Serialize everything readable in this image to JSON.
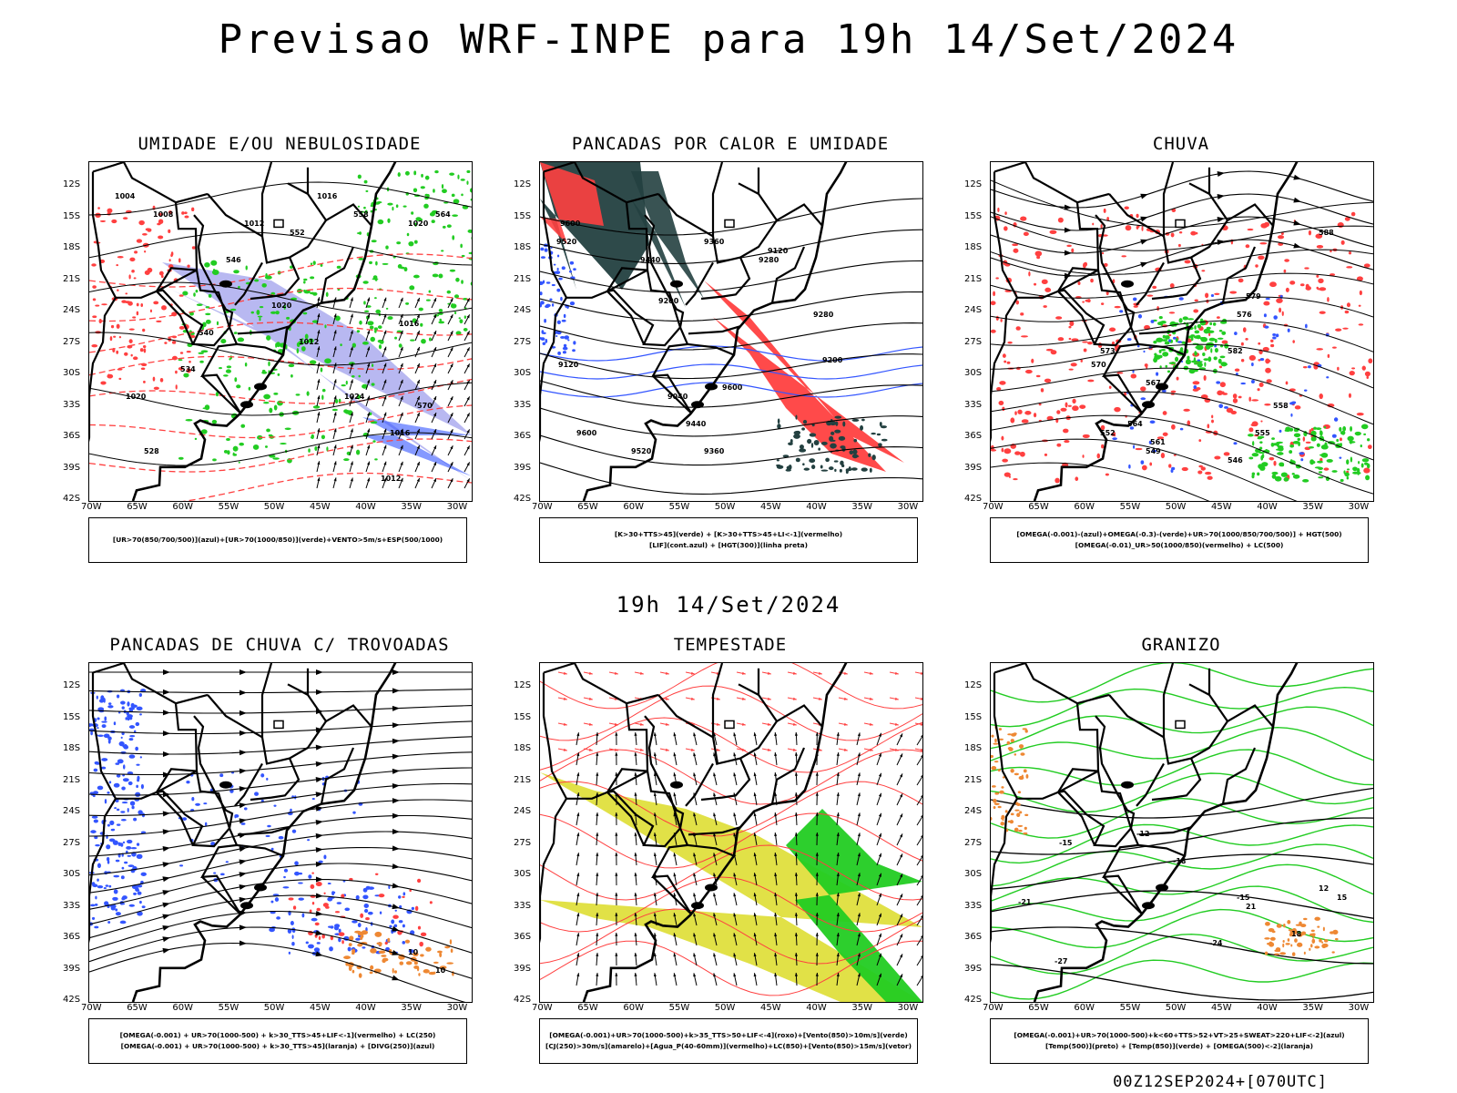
{
  "title": "Previsao WRF-INPE  para 19h 14/Set/2024",
  "subtitle": "19h 14/Set/2024",
  "footer": "00Z12SEP2024+[070UTC]",
  "axes": {
    "lat_labels": [
      "12S",
      "15S",
      "18S",
      "21S",
      "24S",
      "27S",
      "30S",
      "33S",
      "36S",
      "39S",
      "42S"
    ],
    "lon_labels": [
      "70W",
      "65W",
      "60W",
      "55W",
      "50W",
      "45W",
      "40W",
      "35W",
      "30W"
    ]
  },
  "colors": {
    "green": "#22cc22",
    "red": "#ff4040",
    "blue": "#3355ff",
    "lavender": "#b0b0f0",
    "teal": "#234040",
    "yellow": "#dede33",
    "orange": "#ee8833",
    "black": "#000000"
  },
  "panels": [
    {
      "id": "umidade",
      "title": "UMIDADE E/OU NEBULOSIDADE",
      "legend": [
        "[UR>70(850/700/500)](azul)+[UR>70(1000/850)](verde)+VENTO>5m/s+ESP(500/1000)"
      ],
      "labels": [
        "1004",
        "1008",
        "1012",
        "1016",
        "1020",
        "1024",
        "1016",
        "1012",
        "1020",
        "570",
        "564",
        "558",
        "552",
        "546",
        "540",
        "534",
        "528",
        "1016",
        "1012",
        "1020"
      ]
    },
    {
      "id": "pancadas-calor",
      "title": "PANCADAS POR CALOR E UMIDADE",
      "legend": [
        "[K>30+TTS>45](verde) + [K>30+TTS>45+LI<-1](vermelho)",
        "[LIF](cont.azul) + [HGT(300)](linha preta)"
      ],
      "labels": [
        "9600",
        "9520",
        "9440",
        "9360",
        "9280",
        "9200",
        "9120",
        "9040",
        "9600",
        "9600",
        "9520",
        "9440",
        "9360",
        "9280",
        "9200",
        "9120"
      ]
    },
    {
      "id": "chuva",
      "title": "CHUVA",
      "legend": [
        "[OMEGA(-0.001)-(azul)+OMEGA(-0.3)-(verde)+UR>70(1000/850/700/500)] + HGT(500)",
        "[OMEGA(-0.01)_UR>50(1000/850)(vermelho) + LC(500)"
      ],
      "labels": [
        "588",
        "582",
        "579",
        "576",
        "573",
        "570",
        "567",
        "564",
        "561",
        "558",
        "555",
        "552",
        "549",
        "546"
      ]
    },
    {
      "id": "pancadas-trovoadas",
      "title": "PANCADAS DE CHUVA C/ TROVOADAS",
      "legend": [
        "[OMEGA(-0.001) + UR>70(1000-500) + k>30_TTS>45+LIF<-1](vermelho) + LC(250)",
        "[OMEGA(-0.001) + UR>70(1000-500) + k>30_TTS>45](laranja) + [DIVG(250)](azul)"
      ],
      "labels": [
        "10",
        "10"
      ]
    },
    {
      "id": "tempestade",
      "title": "TEMPESTADE",
      "legend": [
        "[OMEGA(-0.001)+UR>70(1000-500)+k>35_TTS>50+LIF<-4](roxo)+[Vento(850)>10m/s](verde)",
        "[CJ(250)>30m/s](amarelo)+[Agua_P(40-60mm)](vermelho)+LC(850)+[Vento(850)>15m/s](vetor)"
      ],
      "labels": []
    },
    {
      "id": "granizo",
      "title": "GRANIZO",
      "legend": [
        "[OMEGA(-0.001)+UR>70(1000-500)+k<60+TTS>52+VT>25+SWEAT>220+LIF<-2](azul)",
        "[Temp(500)](preto) + [Temp(850)](verde) + [OMEGA(500)<-2](laranja)"
      ],
      "labels": [
        "-15",
        "-18",
        "-21",
        "-24",
        "-27",
        "12",
        "15",
        "18",
        "21",
        "-15",
        "-12"
      ]
    }
  ]
}
